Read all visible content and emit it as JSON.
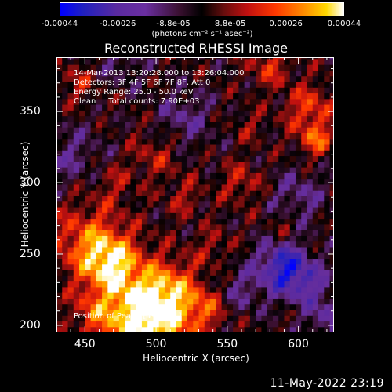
{
  "chart_data": {
    "type": "heatmap",
    "title": "Reconstructed RHESSI Image",
    "xlabel": "Heliocentric X (arcsec)",
    "ylabel": "Heliocentric Y (arcsec)",
    "xlim": [
      430,
      625
    ],
    "ylim": [
      195,
      388
    ],
    "xticks": [
      450,
      500,
      550,
      600
    ],
    "yticks": [
      200,
      250,
      300,
      350
    ],
    "colorbar": {
      "range": [
        -0.00044,
        0.00044
      ],
      "tick_labels": [
        "-0.00044",
        "-0.00026",
        "-8.8e-05",
        "8.8e-05",
        "0.00026",
        "0.00044"
      ],
      "tick_values": [
        -0.00044,
        -0.00026,
        -8.8e-05,
        8.8e-05,
        0.00026,
        0.00044
      ],
      "units": "(photons cm⁻² s⁻¹ asec⁻²)"
    },
    "annotations": [
      "14-Mar-2013 13:20:28.000 to 13:26:04.000",
      "Detectors: 3F 4F 5F 6F 7F 8F, Att 0",
      "Energy Range: 25.0 - 50.0 keV",
      "Clean     Total counts: 7.90E+03"
    ],
    "peak_label": "Position of Peak:  [491,201]",
    "peak_position": [
      491,
      201
    ],
    "peak_value": 0.00044
  },
  "footer_date": "11-May-2022 23:19"
}
